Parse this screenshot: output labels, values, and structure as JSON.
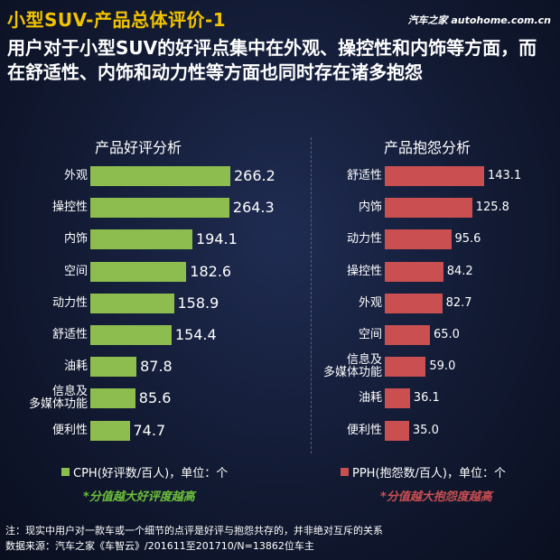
{
  "header": {
    "title": "小型SUV-产品总体评价-1",
    "brand": "汽车之家 autohome.com.cn",
    "subtitle": "用户对于小型SUV的好评点集中在外观、操控性和内饰等方面，而在舒适性、内饰和动力性等方面也同时存在诸多抱怨"
  },
  "colors": {
    "praise": "#8cbd4e",
    "complaint": "#c94f51",
    "note": "#6bbf3a",
    "title": "#f2c300"
  },
  "chart_data": [
    {
      "type": "bar",
      "orientation": "horizontal",
      "title": "产品好评分析",
      "categories": [
        "外观",
        "操控性",
        "内饰",
        "空间",
        "动力性",
        "舒适性",
        "油耗",
        "信息及\n多媒体功能",
        "便利性"
      ],
      "series": [
        {
          "name": "CPH(好评数/百人)，单位：个",
          "values": [
            266.2,
            264.3,
            194.1,
            182.6,
            158.9,
            154.4,
            87.8,
            85.6,
            74.7
          ]
        }
      ],
      "xlim": [
        0,
        280
      ],
      "legend_position": "bottom",
      "note": "*分值越大好评度越高"
    },
    {
      "type": "bar",
      "orientation": "horizontal",
      "title": "产品抱怨分析",
      "categories": [
        "舒适性",
        "内饰",
        "动力性",
        "操控性",
        "外观",
        "空间",
        "信息及\n多媒体功能",
        "油耗",
        "便利性"
      ],
      "series": [
        {
          "name": "PPH(抱怨数/百人)，单位：个",
          "values": [
            143.1,
            125.8,
            95.6,
            84.2,
            82.7,
            65.0,
            59.0,
            36.1,
            35.0
          ]
        }
      ],
      "xlim": [
        0,
        160
      ],
      "legend_position": "bottom",
      "note": "*分值越大抱怨度越高"
    }
  ],
  "footer": {
    "note": "注：现实中用户对一款车或一个细节的点评是好评与抱怨共存的，并非绝对互斥的关系",
    "source": "数据来源：汽车之家《车智云》/201611至201710/N=13862位车主"
  }
}
